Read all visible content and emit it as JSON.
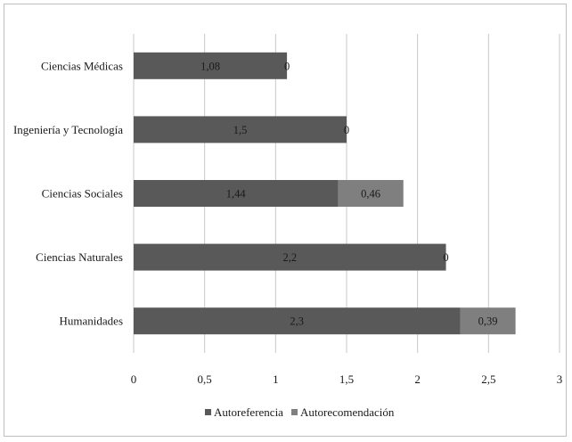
{
  "chart_data": {
    "type": "bar",
    "orientation": "horizontal",
    "stacked": true,
    "categories": [
      "Humanidades",
      "Ciencias Naturales",
      "Ciencias Sociales",
      "Ingeniería y Tecnología",
      "Ciencias Médicas"
    ],
    "series": [
      {
        "name": "Autoreferencia",
        "values": [
          2.3,
          2.2,
          1.44,
          1.5,
          1.08
        ],
        "labels": [
          "2,3",
          "2,2",
          "1,44",
          "1,5",
          "1,08"
        ],
        "color": "#595959"
      },
      {
        "name": "Autorecomendación",
        "values": [
          0.39,
          0,
          0.46,
          0,
          0
        ],
        "labels": [
          "0,39",
          "0",
          "0,46",
          "0",
          "0"
        ],
        "color": "#7f7f7f"
      }
    ],
    "xlim": [
      0,
      3
    ],
    "xticks": [
      0,
      0.5,
      1,
      1.5,
      2,
      2.5,
      3
    ],
    "xtick_labels": [
      "0",
      "0,5",
      "1",
      "1,5",
      "2",
      "2,5",
      "3"
    ],
    "grid": "vertical",
    "legend": "bottom",
    "title": "",
    "xlabel": "",
    "ylabel": ""
  }
}
